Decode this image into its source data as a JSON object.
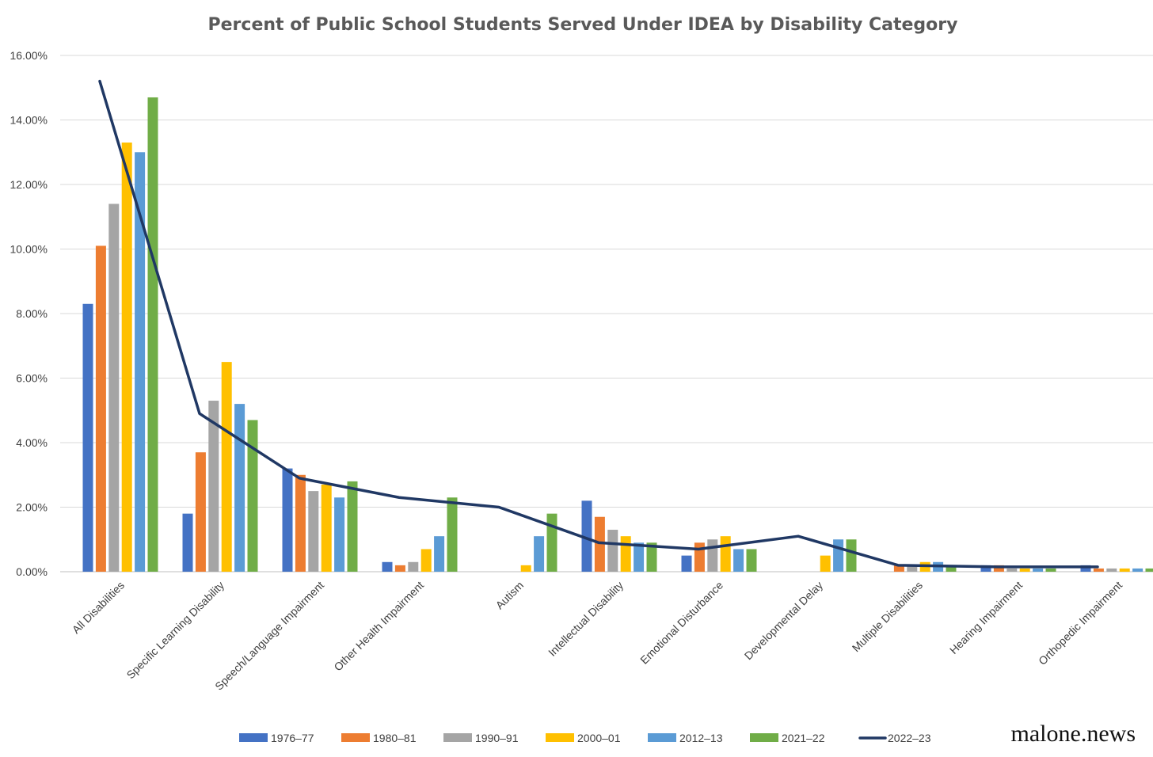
{
  "chart_data": {
    "type": "bar",
    "title": "Percent of Public School Students Served Under IDEA by Disability Category",
    "xlabel": "",
    "ylabel": "",
    "ylim": [
      0,
      16
    ],
    "y_tick_labels": [
      "0.00%",
      "2.00%",
      "4.00%",
      "6.00%",
      "8.00%",
      "10.00%",
      "12.00%",
      "14.00%",
      "16.00%"
    ],
    "categories": [
      "All Disabilities",
      "Specific Learning Disability",
      "Speech/Language Impairment",
      "Other Health Impairment",
      "Autism",
      "Intellectual Disability",
      "Emotional Disturbance",
      "Developmental Delay",
      "Multiple Disabilities",
      "Hearing Impairment",
      "Orthopedic Impairment"
    ],
    "series": [
      {
        "name": "1976–77",
        "type": "bar",
        "color": "#4472C4",
        "values": [
          8.3,
          1.8,
          3.2,
          0.3,
          0,
          2.2,
          0.5,
          0,
          0,
          0.2,
          0.2
        ]
      },
      {
        "name": "1980–81",
        "type": "bar",
        "color": "#ED7D31",
        "values": [
          10.1,
          3.7,
          3.0,
          0.2,
          0,
          1.7,
          0.9,
          0,
          0.2,
          0.2,
          0.1
        ]
      },
      {
        "name": "1990–91",
        "type": "bar",
        "color": "#A5A5A5",
        "values": [
          11.4,
          5.3,
          2.5,
          0.3,
          0,
          1.3,
          1.0,
          0,
          0.2,
          0.1,
          0.1
        ]
      },
      {
        "name": "2000–01",
        "type": "bar",
        "color": "#FFC000",
        "values": [
          13.3,
          6.5,
          2.7,
          0.7,
          0.2,
          1.1,
          1.1,
          0.5,
          0.3,
          0.1,
          0.1
        ]
      },
      {
        "name": "2012–13",
        "type": "bar",
        "color": "#5B9BD5",
        "values": [
          13.0,
          5.2,
          2.3,
          1.1,
          1.1,
          0.9,
          0.7,
          1.0,
          0.3,
          0.1,
          0.1
        ]
      },
      {
        "name": "2021–22",
        "type": "bar",
        "color": "#70AD47",
        "values": [
          14.7,
          4.7,
          2.8,
          2.3,
          1.8,
          0.9,
          0.7,
          1.0,
          0.2,
          0.1,
          0.1
        ]
      },
      {
        "name": "2022–23",
        "type": "line",
        "color": "#203864",
        "values": [
          15.2,
          4.9,
          2.9,
          2.3,
          2.0,
          0.9,
          0.7,
          1.1,
          0.2,
          0.15,
          0.15
        ]
      }
    ],
    "legend_position": "bottom",
    "grid": true
  },
  "watermark": "malone.news"
}
